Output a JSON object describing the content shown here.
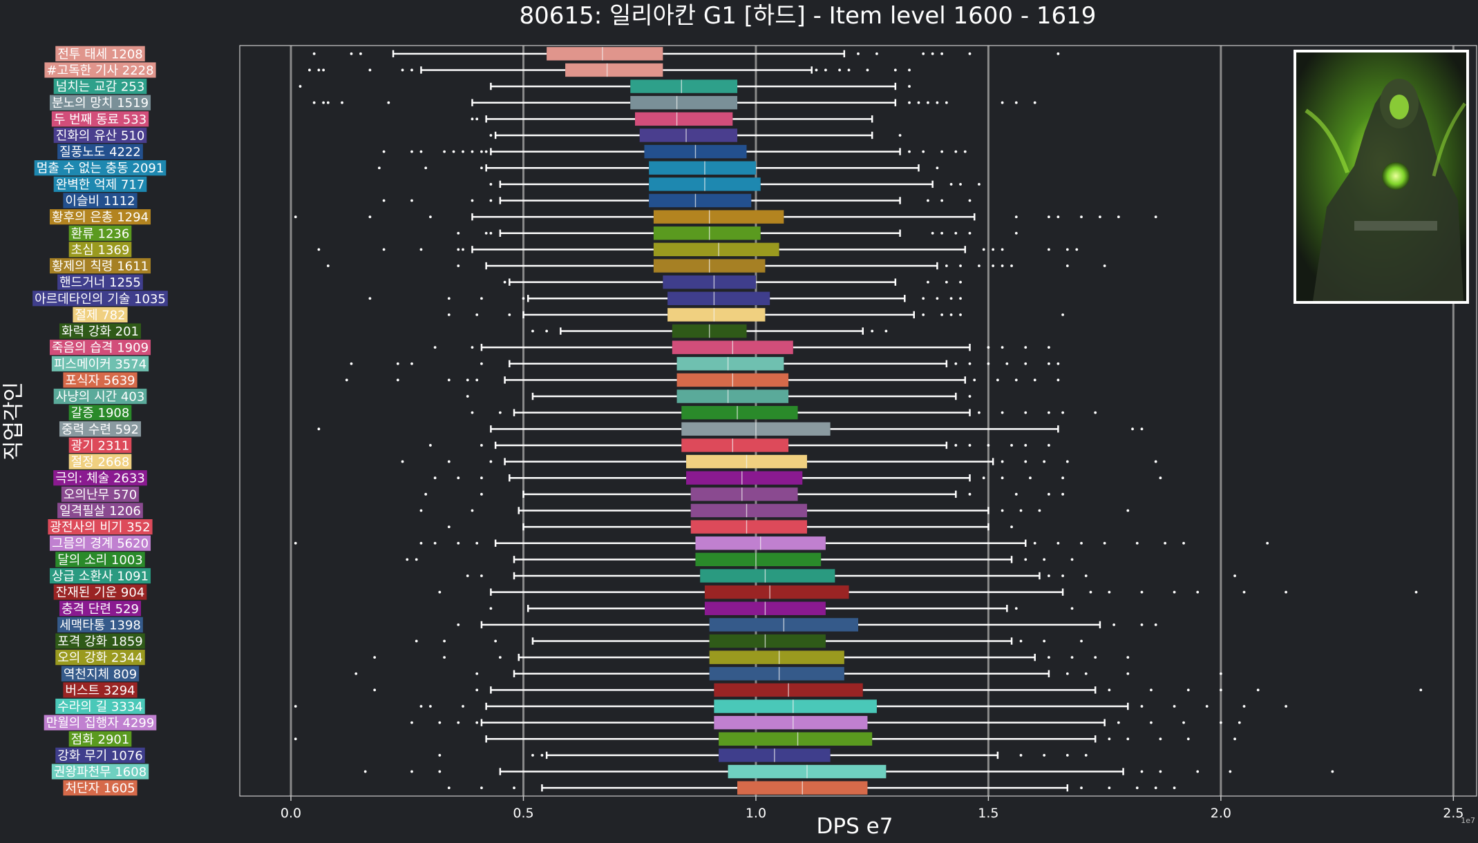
{
  "chart_data": {
    "type": "boxplot",
    "orientation": "horizontal",
    "title": "80615: 일리아칸 G1 [하드] - Item level 1600 - 1619",
    "xlabel": "DPS e7",
    "ylabel": "직업각인",
    "x_scale_note": "1e7",
    "xlim": [
      -0.11,
      2.55
    ],
    "xticks": [
      0.0,
      0.5,
      1.0,
      1.5,
      2.0,
      2.5
    ],
    "xtick_labels": [
      "0.0",
      "0.5",
      "1.0",
      "1.5",
      "2.0",
      "2.5"
    ],
    "grid": "vertical-major",
    "image_panel": "top-right portrait thumbnail",
    "series": [
      {
        "label": "전투 태세 1208",
        "color": "#e0958c",
        "whislo": 0.22,
        "q1": 0.55,
        "med": 0.67,
        "q3": 0.8,
        "whishi": 1.19,
        "outliers": [
          0.05,
          0.13,
          0.15,
          1.22,
          1.26,
          1.36,
          1.38,
          1.4,
          1.46,
          1.65
        ]
      },
      {
        "label": "#고독한 기사 2228",
        "color": "#e0958c",
        "whislo": 0.28,
        "q1": 0.59,
        "med": 0.68,
        "q3": 0.8,
        "whishi": 1.12,
        "outliers": [
          0.04,
          0.06,
          0.07,
          0.17,
          0.24,
          0.26,
          1.13,
          1.15,
          1.18,
          1.2,
          1.24,
          1.3,
          1.33
        ]
      },
      {
        "label": "넘치는 교감 253",
        "color": "#2ea08a",
        "whislo": 0.43,
        "q1": 0.73,
        "med": 0.84,
        "q3": 0.96,
        "whishi": 1.3,
        "outliers": [
          0.02,
          1.33
        ]
      },
      {
        "label": "분노의 망치 1519",
        "color": "#7a9098",
        "whislo": 0.39,
        "q1": 0.73,
        "med": 0.83,
        "q3": 0.96,
        "whishi": 1.3,
        "outliers": [
          0.05,
          0.07,
          0.08,
          0.11,
          0.21,
          1.33,
          1.35,
          1.37,
          1.39,
          1.41,
          1.53,
          1.56,
          1.6
        ]
      },
      {
        "label": "두 번째 동료 533",
        "color": "#d24e7a",
        "whislo": 0.42,
        "q1": 0.74,
        "med": 0.83,
        "q3": 0.95,
        "whishi": 1.25,
        "outliers": [
          0.39,
          0.4
        ]
      },
      {
        "label": "진화의 유산 510",
        "color": "#4a3e8e",
        "whislo": 0.44,
        "q1": 0.75,
        "med": 0.85,
        "q3": 0.96,
        "whishi": 1.25,
        "outliers": [
          0.43,
          1.31
        ]
      },
      {
        "label": "질풍노도 4222",
        "color": "#23508e",
        "whislo": 0.43,
        "q1": 0.76,
        "med": 0.87,
        "q3": 0.98,
        "whishi": 1.31,
        "outliers": [
          0.2,
          0.26,
          0.28,
          0.33,
          0.35,
          0.37,
          0.39,
          0.41,
          0.42,
          1.33,
          1.36,
          1.4,
          1.43,
          1.45
        ]
      },
      {
        "label": "멈출 수 없는 충동 2091",
        "color": "#1e88b0",
        "whislo": 0.42,
        "q1": 0.77,
        "med": 0.89,
        "q3": 1.0,
        "whishi": 1.35,
        "outliers": [
          0.19,
          0.29,
          0.41,
          1.39
        ]
      },
      {
        "label": "완벽한 억제 717",
        "color": "#1e88b0",
        "whislo": 0.45,
        "q1": 0.77,
        "med": 0.89,
        "q3": 1.01,
        "whishi": 1.38,
        "outliers": [
          0.43,
          1.42,
          1.44,
          1.48
        ]
      },
      {
        "label": "이슬비 1112",
        "color": "#23508e",
        "whislo": 0.45,
        "q1": 0.77,
        "med": 0.87,
        "q3": 0.99,
        "whishi": 1.31,
        "outliers": [
          0.2,
          0.26,
          0.39,
          0.43,
          1.37,
          1.4,
          1.46
        ]
      },
      {
        "label": "황후의 은총 1294",
        "color": "#b38420",
        "whislo": 0.39,
        "q1": 0.78,
        "med": 0.9,
        "q3": 1.06,
        "whishi": 1.47,
        "outliers": [
          0.01,
          0.17,
          0.3,
          1.56,
          1.63,
          1.65,
          1.7,
          1.74,
          1.78,
          1.86
        ]
      },
      {
        "label": "환류 1236",
        "color": "#5a9a1f",
        "whislo": 0.45,
        "q1": 0.78,
        "med": 0.9,
        "q3": 1.01,
        "whishi": 1.31,
        "outliers": [
          0.36,
          0.42,
          0.43,
          1.38,
          1.4,
          1.43,
          1.46,
          1.56
        ]
      },
      {
        "label": "초심 1369",
        "color": "#9a9a1f",
        "whislo": 0.39,
        "q1": 0.78,
        "med": 0.92,
        "q3": 1.05,
        "whishi": 1.45,
        "outliers": [
          0.06,
          0.2,
          0.28,
          0.36,
          0.37,
          1.49,
          1.51,
          1.53,
          1.63,
          1.67,
          1.69
        ]
      },
      {
        "label": "황제의 칙령 1611",
        "color": "#a68024",
        "whislo": 0.42,
        "q1": 0.78,
        "med": 0.9,
        "q3": 1.02,
        "whishi": 1.39,
        "outliers": [
          0.08,
          0.36,
          1.41,
          1.44,
          1.48,
          1.51,
          1.53,
          1.55,
          1.67,
          1.75
        ]
      },
      {
        "label": "핸드거너 1255",
        "color": "#3f3e8c",
        "whislo": 0.47,
        "q1": 0.8,
        "med": 0.91,
        "q3": 1.0,
        "whishi": 1.3,
        "outliers": [
          0.46,
          1.37,
          1.41,
          1.44
        ]
      },
      {
        "label": "아르데타인의 기술 1035",
        "color": "#3f3e8c",
        "whislo": 0.51,
        "q1": 0.81,
        "med": 0.91,
        "q3": 1.03,
        "whishi": 1.32,
        "outliers": [
          0.17,
          0.34,
          0.41,
          0.5,
          1.36,
          1.39,
          1.42,
          1.44
        ]
      },
      {
        "label": "절제 782",
        "color": "#f0d080",
        "whislo": 0.5,
        "q1": 0.81,
        "med": 0.91,
        "q3": 1.02,
        "whishi": 1.34,
        "outliers": [
          0.34,
          0.4,
          0.47,
          1.36,
          1.4,
          1.42,
          1.44,
          1.66
        ]
      },
      {
        "label": "화력 강화 201",
        "color": "#2f5a18",
        "whislo": 0.58,
        "q1": 0.82,
        "med": 0.9,
        "q3": 0.98,
        "whishi": 1.23,
        "outliers": [
          0.52,
          0.55,
          1.25,
          1.28
        ]
      },
      {
        "label": "죽음의 습격 1909",
        "color": "#d24e7a",
        "whislo": 0.41,
        "q1": 0.82,
        "med": 0.95,
        "q3": 1.08,
        "whishi": 1.46,
        "outliers": [
          0.31,
          0.39,
          1.5,
          1.53,
          1.58,
          1.63
        ]
      },
      {
        "label": "피스메이커 3574",
        "color": "#6fc0b0",
        "whislo": 0.47,
        "q1": 0.83,
        "med": 0.94,
        "q3": 1.06,
        "whishi": 1.41,
        "outliers": [
          0.13,
          0.23,
          0.26,
          0.41,
          1.43,
          1.46,
          1.5,
          1.54,
          1.58,
          1.63,
          1.65
        ]
      },
      {
        "label": "포식자 5639",
        "color": "#d66a4a",
        "whislo": 0.46,
        "q1": 0.83,
        "med": 0.95,
        "q3": 1.07,
        "whishi": 1.45,
        "outliers": [
          0.12,
          0.23,
          0.34,
          0.38,
          0.4,
          1.47,
          1.52,
          1.56,
          1.6,
          1.65
        ]
      },
      {
        "label": "사냥의 시간 403",
        "color": "#5aaa9a",
        "whislo": 0.52,
        "q1": 0.83,
        "med": 0.94,
        "q3": 1.07,
        "whishi": 1.43,
        "outliers": [
          0.38,
          1.46
        ]
      },
      {
        "label": "갈증 1908",
        "color": "#2a8a2a",
        "whislo": 0.48,
        "q1": 0.84,
        "med": 0.96,
        "q3": 1.09,
        "whishi": 1.46,
        "outliers": [
          0.39,
          0.45,
          1.48,
          1.53,
          1.58,
          1.63,
          1.66,
          1.73
        ]
      },
      {
        "label": "중력 수련 592",
        "color": "#8a9aa0",
        "whislo": 0.43,
        "q1": 0.84,
        "med": 1.0,
        "q3": 1.16,
        "whishi": 1.65,
        "outliers": [
          0.06,
          1.81,
          1.83
        ]
      },
      {
        "label": "광기 2311",
        "color": "#dd4a5a",
        "whislo": 0.44,
        "q1": 0.84,
        "med": 0.95,
        "q3": 1.07,
        "whishi": 1.41,
        "outliers": [
          0.3,
          0.41,
          1.43,
          1.46,
          1.5,
          1.55,
          1.58,
          1.63
        ]
      },
      {
        "label": "절정 2668",
        "color": "#f0d080",
        "whislo": 0.46,
        "q1": 0.85,
        "med": 0.98,
        "q3": 1.11,
        "whishi": 1.51,
        "outliers": [
          0.24,
          0.34,
          0.43,
          1.53,
          1.58,
          1.62,
          1.67,
          1.86
        ]
      },
      {
        "label": "극의: 체술 2633",
        "color": "#8a1a90",
        "whislo": 0.47,
        "q1": 0.85,
        "med": 0.97,
        "q3": 1.1,
        "whishi": 1.46,
        "outliers": [
          0.31,
          0.36,
          0.41,
          1.49,
          1.53,
          1.59,
          1.66,
          1.87
        ]
      },
      {
        "label": "오의난무 570",
        "color": "#8a4a90",
        "whislo": 0.5,
        "q1": 0.86,
        "med": 0.97,
        "q3": 1.09,
        "whishi": 1.43,
        "outliers": [
          0.29,
          0.41,
          1.46,
          1.56,
          1.63,
          1.66
        ]
      },
      {
        "label": "일격필살 1206",
        "color": "#8a4a90",
        "whislo": 0.49,
        "q1": 0.86,
        "med": 0.98,
        "q3": 1.11,
        "whishi": 1.5,
        "outliers": [
          0.28,
          0.39,
          1.53,
          1.57,
          1.61,
          1.8
        ]
      },
      {
        "label": "광전사의 비기 352",
        "color": "#dd4a5a",
        "whislo": 0.5,
        "q1": 0.86,
        "med": 0.98,
        "q3": 1.11,
        "whishi": 1.5,
        "outliers": [
          0.34,
          1.55
        ]
      },
      {
        "label": "그믐의 경계 5620",
        "color": "#c080d0",
        "whislo": 0.44,
        "q1": 0.87,
        "med": 1.01,
        "q3": 1.15,
        "whishi": 1.58,
        "outliers": [
          0.01,
          0.28,
          0.31,
          0.36,
          0.4,
          1.6,
          1.65,
          1.7,
          1.75,
          1.82,
          1.88,
          1.92,
          2.1
        ]
      },
      {
        "label": "달의 소리 1003",
        "color": "#2a8a2a",
        "whislo": 0.48,
        "q1": 0.87,
        "med": 1.0,
        "q3": 1.14,
        "whishi": 1.55,
        "outliers": [
          0.25,
          0.27,
          1.58,
          1.62,
          1.68
        ]
      },
      {
        "label": "상급 소환사 1091",
        "color": "#2a9a80",
        "whislo": 0.48,
        "q1": 0.88,
        "med": 1.02,
        "q3": 1.17,
        "whishi": 1.61,
        "outliers": [
          0.38,
          0.41,
          1.63,
          1.66,
          1.71,
          2.03
        ]
      },
      {
        "label": "잔재된 기운 904",
        "color": "#9a2424",
        "whislo": 0.43,
        "q1": 0.89,
        "med": 1.03,
        "q3": 1.2,
        "whishi": 1.66,
        "outliers": [
          0.32,
          1.72,
          1.76,
          1.83,
          1.9,
          1.95,
          2.05,
          2.14,
          2.42
        ]
      },
      {
        "label": "충격 단련 529",
        "color": "#8a1a90",
        "whislo": 0.51,
        "q1": 0.89,
        "med": 1.02,
        "q3": 1.15,
        "whishi": 1.54,
        "outliers": [
          0.43,
          1.56,
          1.68
        ]
      },
      {
        "label": "세맥타통 1398",
        "color": "#355a8a",
        "whislo": 0.41,
        "q1": 0.9,
        "med": 1.06,
        "q3": 1.22,
        "whishi": 1.74,
        "outliers": [
          0.36,
          1.77,
          1.83,
          1.86
        ]
      },
      {
        "label": "포격 강화 1859",
        "color": "#2f5a18",
        "whislo": 0.52,
        "q1": 0.9,
        "med": 1.02,
        "q3": 1.15,
        "whishi": 1.55,
        "outliers": [
          0.27,
          0.33,
          0.44,
          1.57,
          1.62,
          1.7
        ]
      },
      {
        "label": "오의 강화 2344",
        "color": "#9a9a1f",
        "whislo": 0.49,
        "q1": 0.9,
        "med": 1.05,
        "q3": 1.19,
        "whishi": 1.6,
        "outliers": [
          0.18,
          0.33,
          0.45,
          1.63,
          1.68,
          1.73,
          1.8
        ]
      },
      {
        "label": "역천지체 809",
        "color": "#355a8a",
        "whislo": 0.48,
        "q1": 0.9,
        "med": 1.05,
        "q3": 1.19,
        "whishi": 1.63,
        "outliers": [
          0.14,
          0.4,
          1.67,
          1.71,
          1.8,
          2.0
        ]
      },
      {
        "label": "버스트 3294",
        "color": "#9a2424",
        "whislo": 0.43,
        "q1": 0.91,
        "med": 1.07,
        "q3": 1.23,
        "whishi": 1.73,
        "outliers": [
          0.18,
          0.4,
          1.76,
          1.85,
          1.93,
          2.0,
          2.08,
          2.43
        ]
      },
      {
        "label": "수라의 길 3334",
        "color": "#4ac8b8",
        "whislo": 0.42,
        "q1": 0.91,
        "med": 1.08,
        "q3": 1.26,
        "whishi": 1.8,
        "outliers": [
          0.01,
          0.28,
          0.3,
          0.37,
          1.83,
          1.9,
          1.97,
          2.05,
          2.14
        ]
      },
      {
        "label": "만월의 집행자 4299",
        "color": "#c080d0",
        "whislo": 0.41,
        "q1": 0.91,
        "med": 1.08,
        "q3": 1.24,
        "whishi": 1.75,
        "outliers": [
          0.26,
          0.32,
          0.36,
          0.4,
          1.78,
          1.85,
          1.92,
          2.0,
          2.04
        ]
      },
      {
        "label": "점화 2901",
        "color": "#5a9a1f",
        "whislo": 0.42,
        "q1": 0.92,
        "med": 1.09,
        "q3": 1.25,
        "whishi": 1.73,
        "outliers": [
          0.01,
          1.76,
          1.8,
          1.87,
          1.93,
          2.03
        ]
      },
      {
        "label": "강화 무기 1076",
        "color": "#3f3e8c",
        "whislo": 0.55,
        "q1": 0.92,
        "med": 1.04,
        "q3": 1.16,
        "whishi": 1.52,
        "outliers": [
          0.32,
          0.52,
          0.54,
          1.57,
          1.62,
          1.67,
          1.71
        ]
      },
      {
        "label": "권왕파천무 1608",
        "color": "#6fd0c0",
        "whislo": 0.45,
        "q1": 0.94,
        "med": 1.11,
        "q3": 1.28,
        "whishi": 1.79,
        "outliers": [
          0.16,
          0.26,
          0.32,
          1.83,
          1.87,
          1.95,
          2.02,
          2.24
        ]
      },
      {
        "label": "처단자 1605",
        "color": "#d66a4a",
        "whislo": 0.54,
        "q1": 0.96,
        "med": 1.1,
        "q3": 1.24,
        "whishi": 1.67,
        "outliers": [
          0.34,
          0.41,
          0.48,
          1.7,
          1.76,
          1.82,
          1.86,
          1.9
        ]
      }
    ]
  }
}
